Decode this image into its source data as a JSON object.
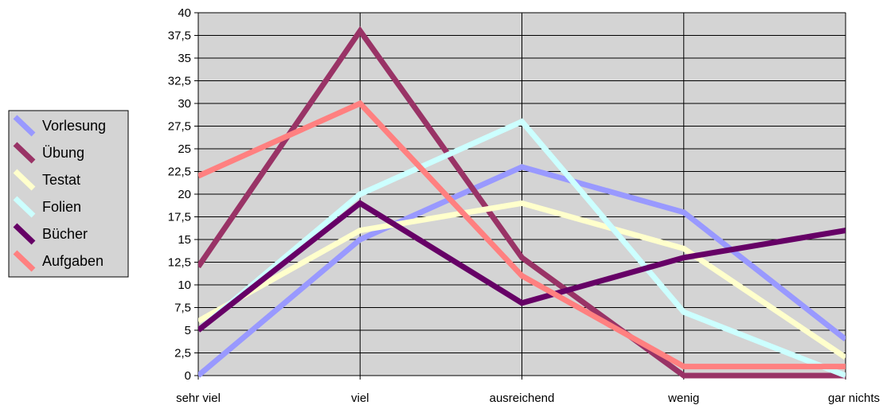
{
  "chart_data": {
    "type": "line",
    "categories": [
      "sehr viel",
      "viel",
      "ausreichend",
      "wenig",
      "gar nichts"
    ],
    "ylim": [
      0,
      40
    ],
    "yticks": [
      "0",
      "2,5",
      "5",
      "7,5",
      "10",
      "12,5",
      "15",
      "17,5",
      "20",
      "22,5",
      "25",
      "27,5",
      "30",
      "32,5",
      "35",
      "37,5",
      "40"
    ],
    "grid": {
      "horizontal": true,
      "vertical": true
    },
    "legend_position": "left",
    "plot_background": "#d4d4d4",
    "series": [
      {
        "name": "Vorlesung",
        "color": "#9999ff",
        "values": [
          0,
          15,
          23,
          18,
          4
        ]
      },
      {
        "name": "Übung",
        "color": "#993366",
        "values": [
          12,
          38,
          13,
          0,
          0
        ]
      },
      {
        "name": "Testat",
        "color": "#ffffcc",
        "values": [
          6,
          16,
          19,
          14,
          2
        ]
      },
      {
        "name": "Folien",
        "color": "#ccffff",
        "values": [
          5,
          20,
          28,
          7,
          0
        ]
      },
      {
        "name": "Bücher",
        "color": "#660066",
        "values": [
          5,
          19,
          8,
          13,
          16
        ]
      },
      {
        "name": "Aufgaben",
        "color": "#ff8080",
        "values": [
          22,
          30,
          11,
          1,
          1
        ]
      }
    ]
  }
}
